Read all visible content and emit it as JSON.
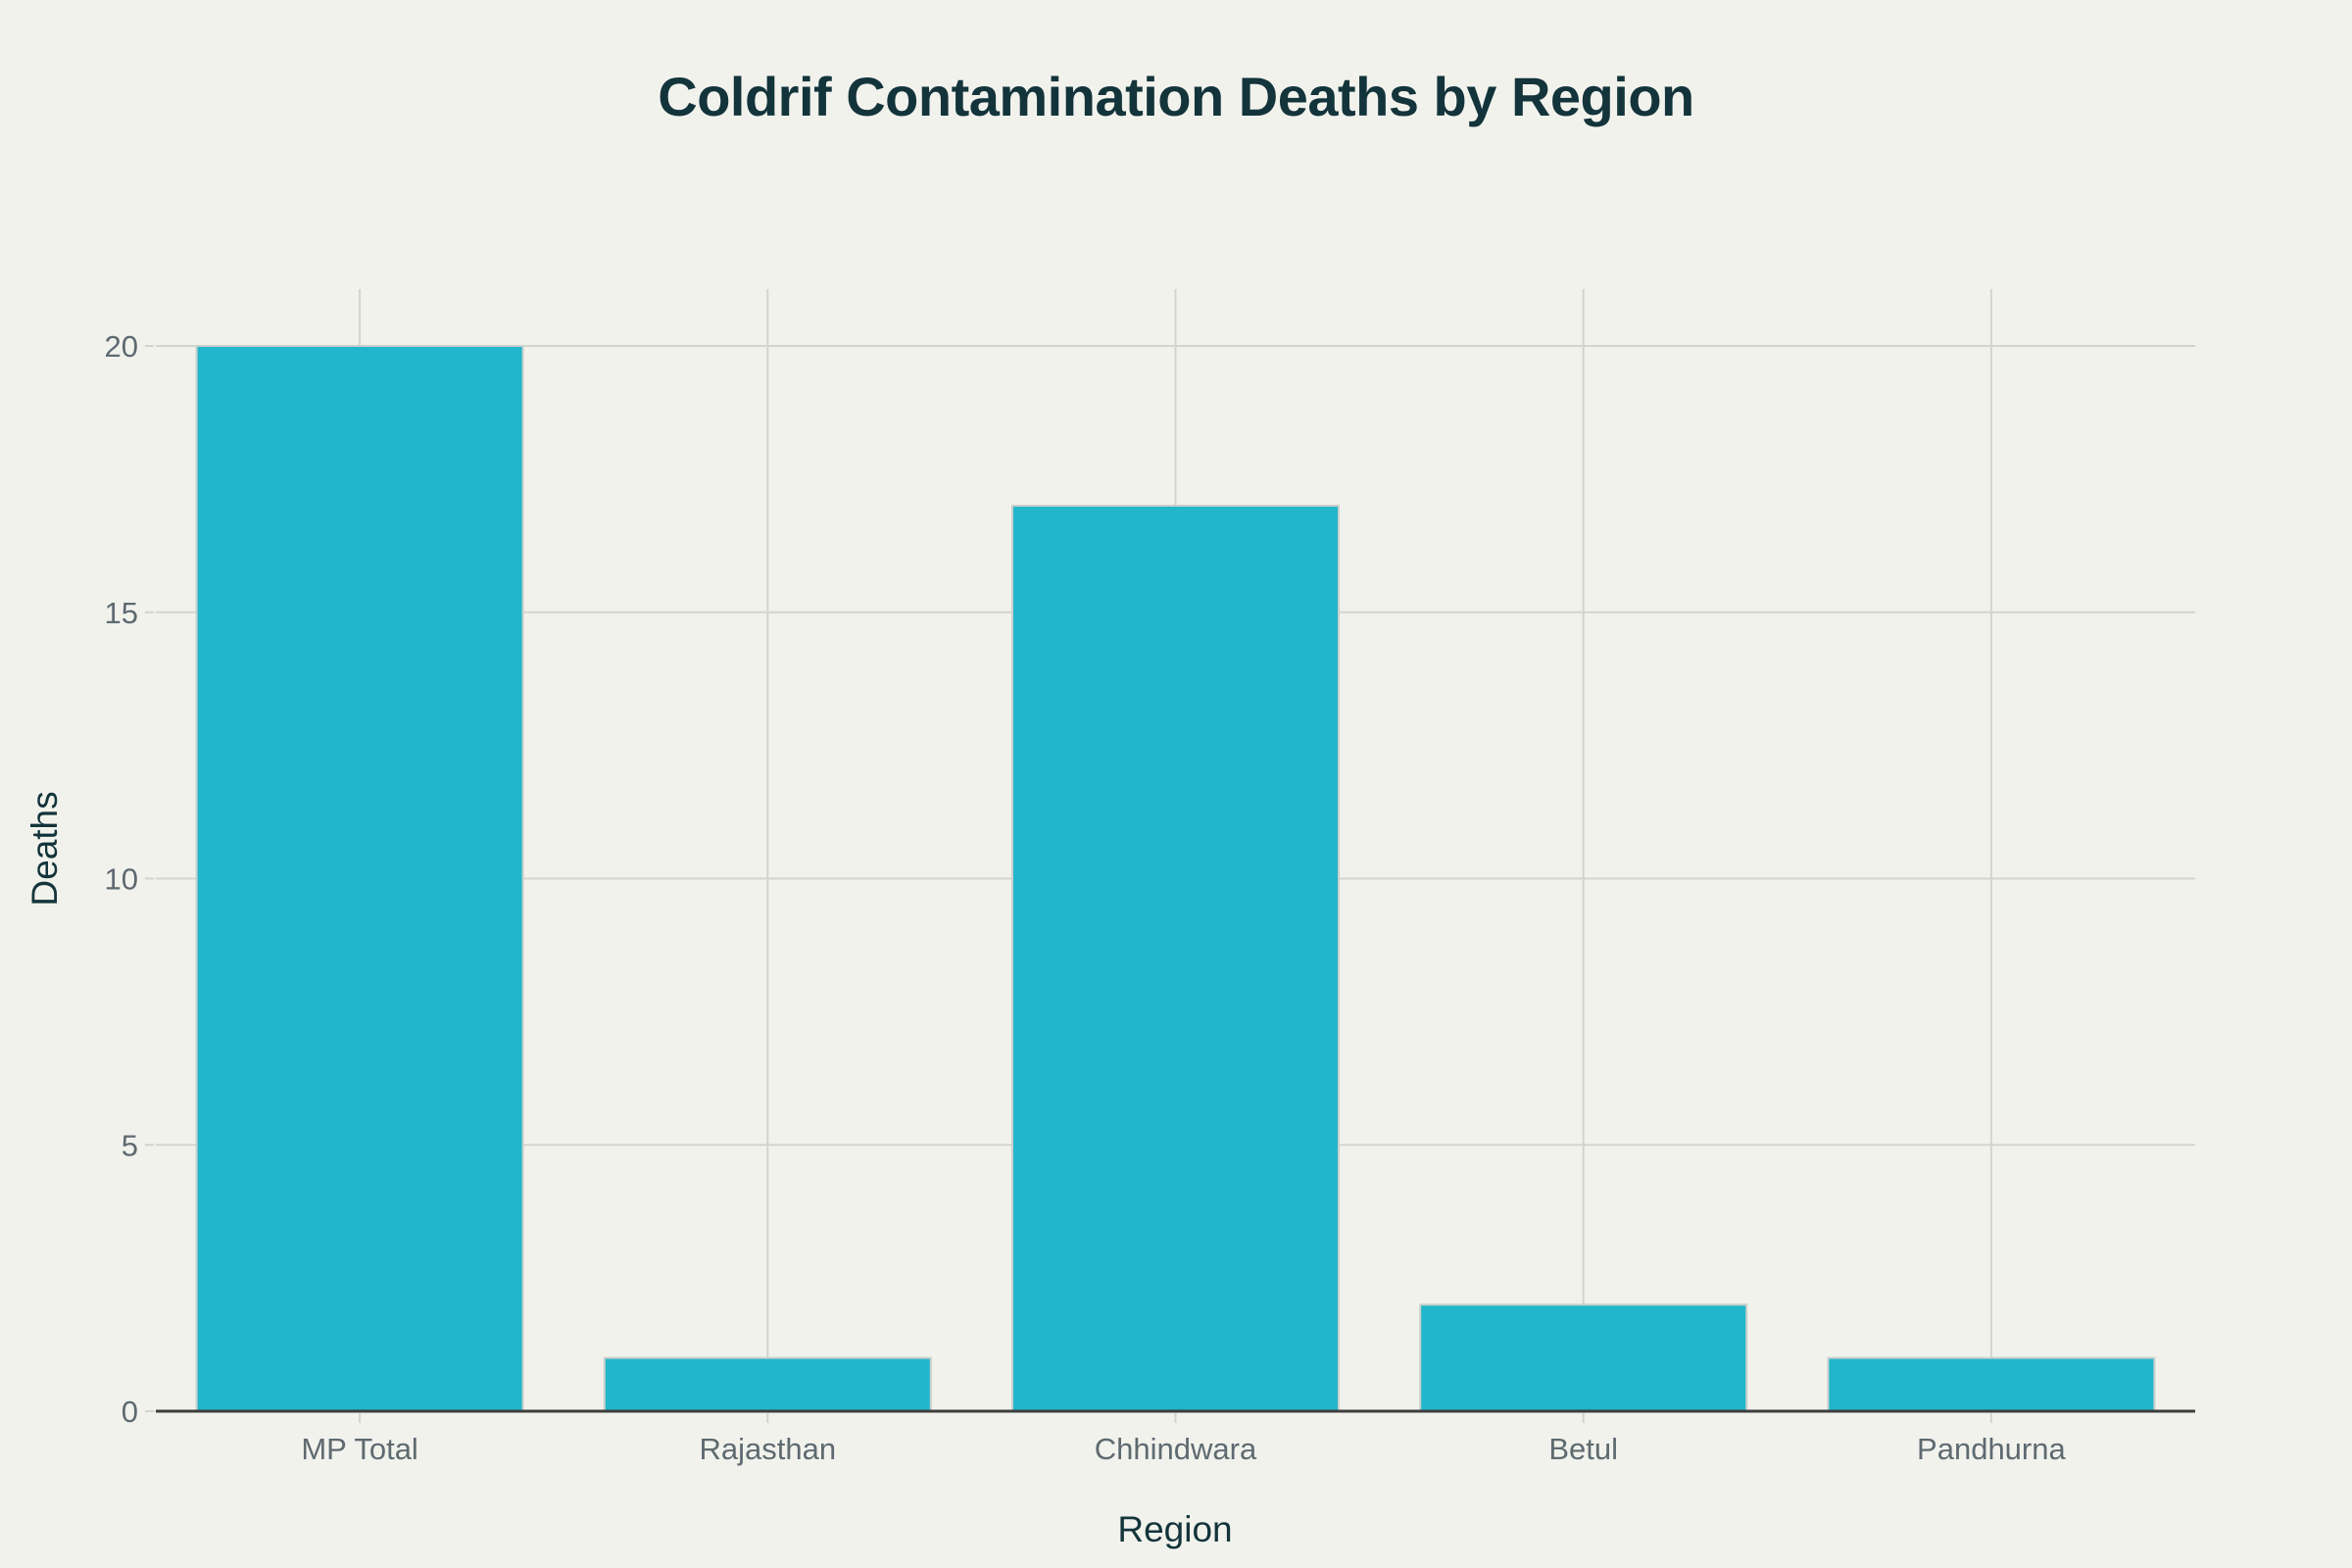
{
  "chart_data": {
    "type": "bar",
    "title": "Coldrif Contamination Deaths by Region",
    "xlabel": "Region",
    "ylabel": "Deaths",
    "categories": [
      "MP Total",
      "Rajasthan",
      "Chhindwara",
      "Betul",
      "Pandhurna"
    ],
    "values": [
      20,
      1,
      17,
      2,
      1
    ],
    "ylim": [
      0,
      21
    ],
    "yticks": [
      0,
      5,
      10,
      15,
      20
    ],
    "ytick_labels": [
      "0",
      "5",
      "10",
      "15",
      "20"
    ],
    "grid": true,
    "legend": "none",
    "bar_color": "#21B6CB",
    "background_color": "#F2F2ED"
  }
}
